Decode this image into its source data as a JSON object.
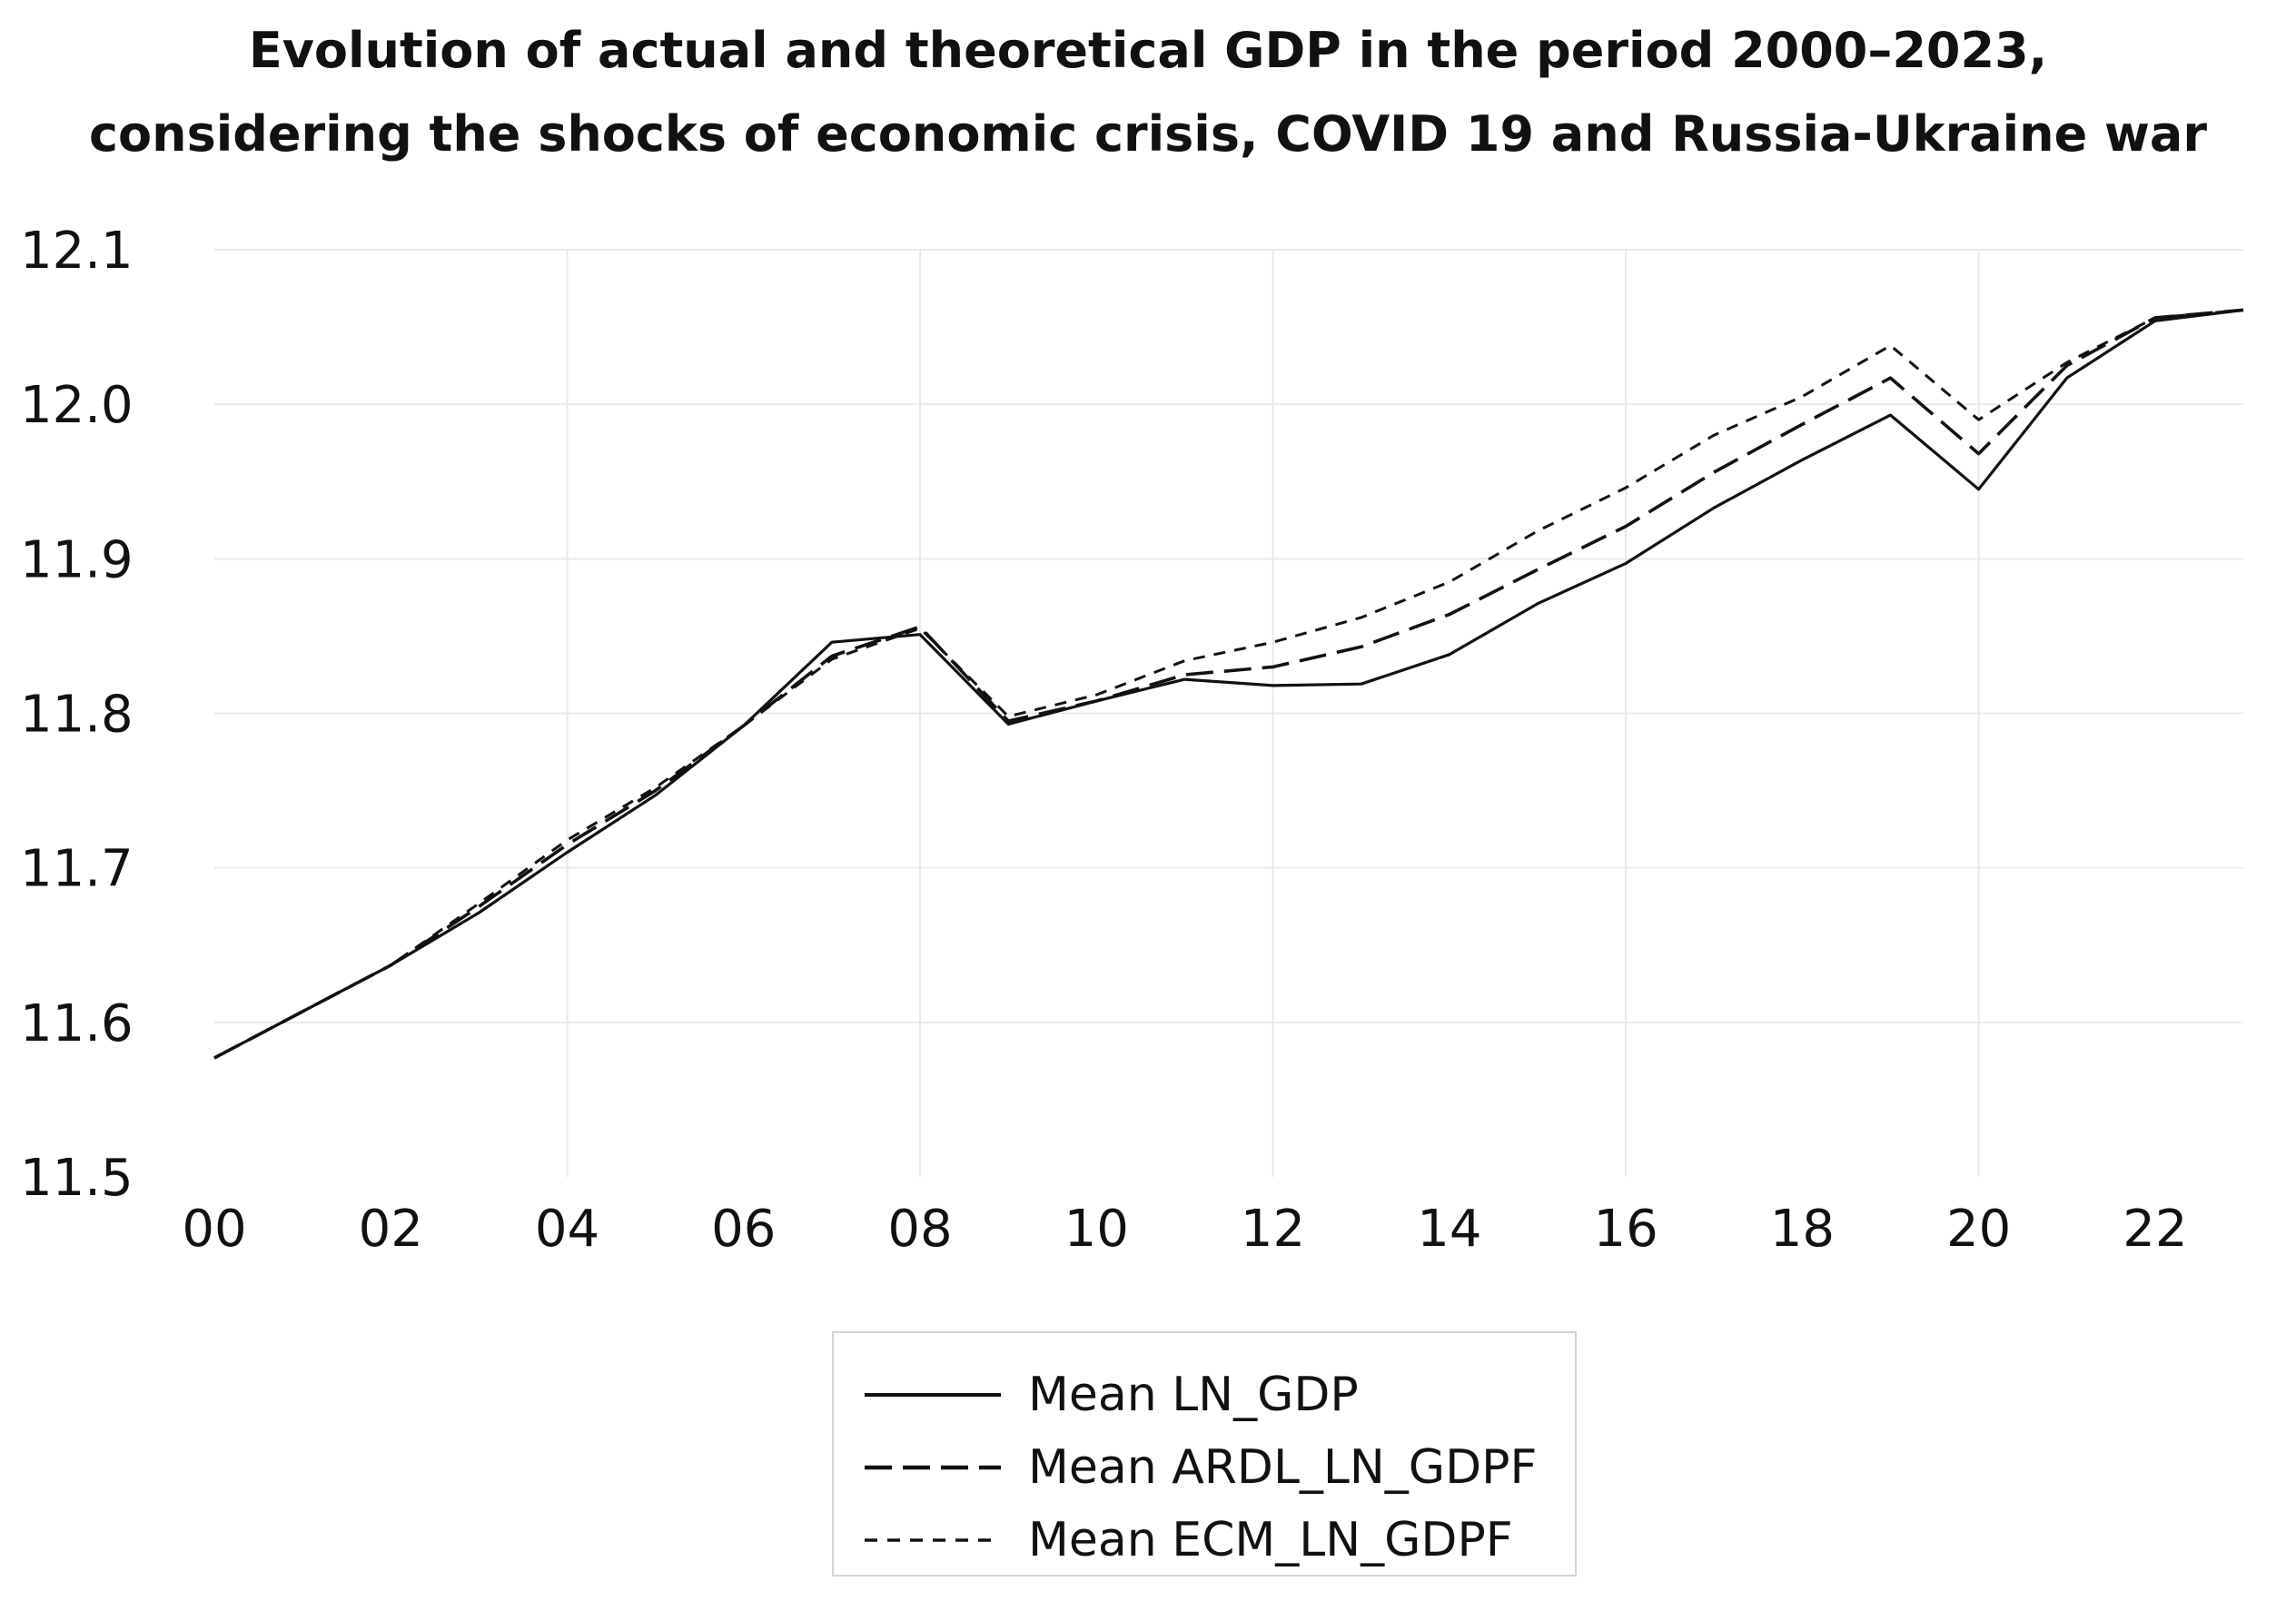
{
  "chart_data": {
    "type": "line",
    "title": [
      "Evolution of actual and theoretical GDP in the period 2000–2023,",
      "considering the shocks of economic crisis, COVID 19 and Russia-Ukraine war"
    ],
    "xlabel": "",
    "ylabel": "",
    "x": [
      2000,
      2001,
      2002,
      2003,
      2004,
      2005,
      2006,
      2007,
      2008,
      2009,
      2010,
      2011,
      2012,
      2013,
      2014,
      2015,
      2016,
      2017,
      2018,
      2019,
      2020,
      2021,
      2022,
      2023
    ],
    "xlim": [
      2000,
      2023
    ],
    "ylim": [
      11.5,
      12.1
    ],
    "x_ticks": [
      2000,
      2002,
      2004,
      2006,
      2008,
      2010,
      2012,
      2014,
      2016,
      2018,
      2020,
      2022
    ],
    "x_tick_labels": [
      "00",
      "02",
      "04",
      "06",
      "08",
      "10",
      "12",
      "14",
      "16",
      "18",
      "20",
      "22"
    ],
    "y_ticks": [
      11.5,
      11.6,
      11.7,
      11.8,
      11.9,
      12.0,
      12.1
    ],
    "y_tick_labels": [
      "11.5",
      "11.6",
      "11.7",
      "11.8",
      "11.9",
      "12.0",
      "12.1"
    ],
    "grid": true,
    "legend_position": "bottom-center",
    "series": [
      {
        "name": "Mean LN_GDP",
        "style": "solid",
        "color": "#111111",
        "values": [
          11.577,
          11.607,
          11.637,
          11.671,
          11.71,
          11.747,
          11.792,
          11.846,
          11.851,
          11.793,
          11.808,
          11.822,
          11.818,
          11.819,
          11.838,
          11.871,
          11.897,
          11.933,
          11.964,
          11.993,
          11.945,
          12.017,
          12.054,
          12.061
        ]
      },
      {
        "name": "Mean ARDL_LN_GDPF",
        "style": "long-dash",
        "color": "#111111",
        "values": [
          11.577,
          11.607,
          11.637,
          11.675,
          11.715,
          11.75,
          11.792,
          11.837,
          11.856,
          11.795,
          11.808,
          11.825,
          11.83,
          11.843,
          11.864,
          11.893,
          11.921,
          11.956,
          11.987,
          12.017,
          11.968,
          12.025,
          12.056,
          12.061
        ]
      },
      {
        "name": "Mean ECM_LN_GDPF",
        "style": "short-dash",
        "color": "#111111",
        "values": [
          11.577,
          11.607,
          11.637,
          11.677,
          11.718,
          11.752,
          11.792,
          11.835,
          11.855,
          11.798,
          11.812,
          11.834,
          11.846,
          11.862,
          11.885,
          11.918,
          11.946,
          11.98,
          12.005,
          12.038,
          11.99,
          12.027,
          12.056,
          12.061
        ]
      }
    ]
  }
}
